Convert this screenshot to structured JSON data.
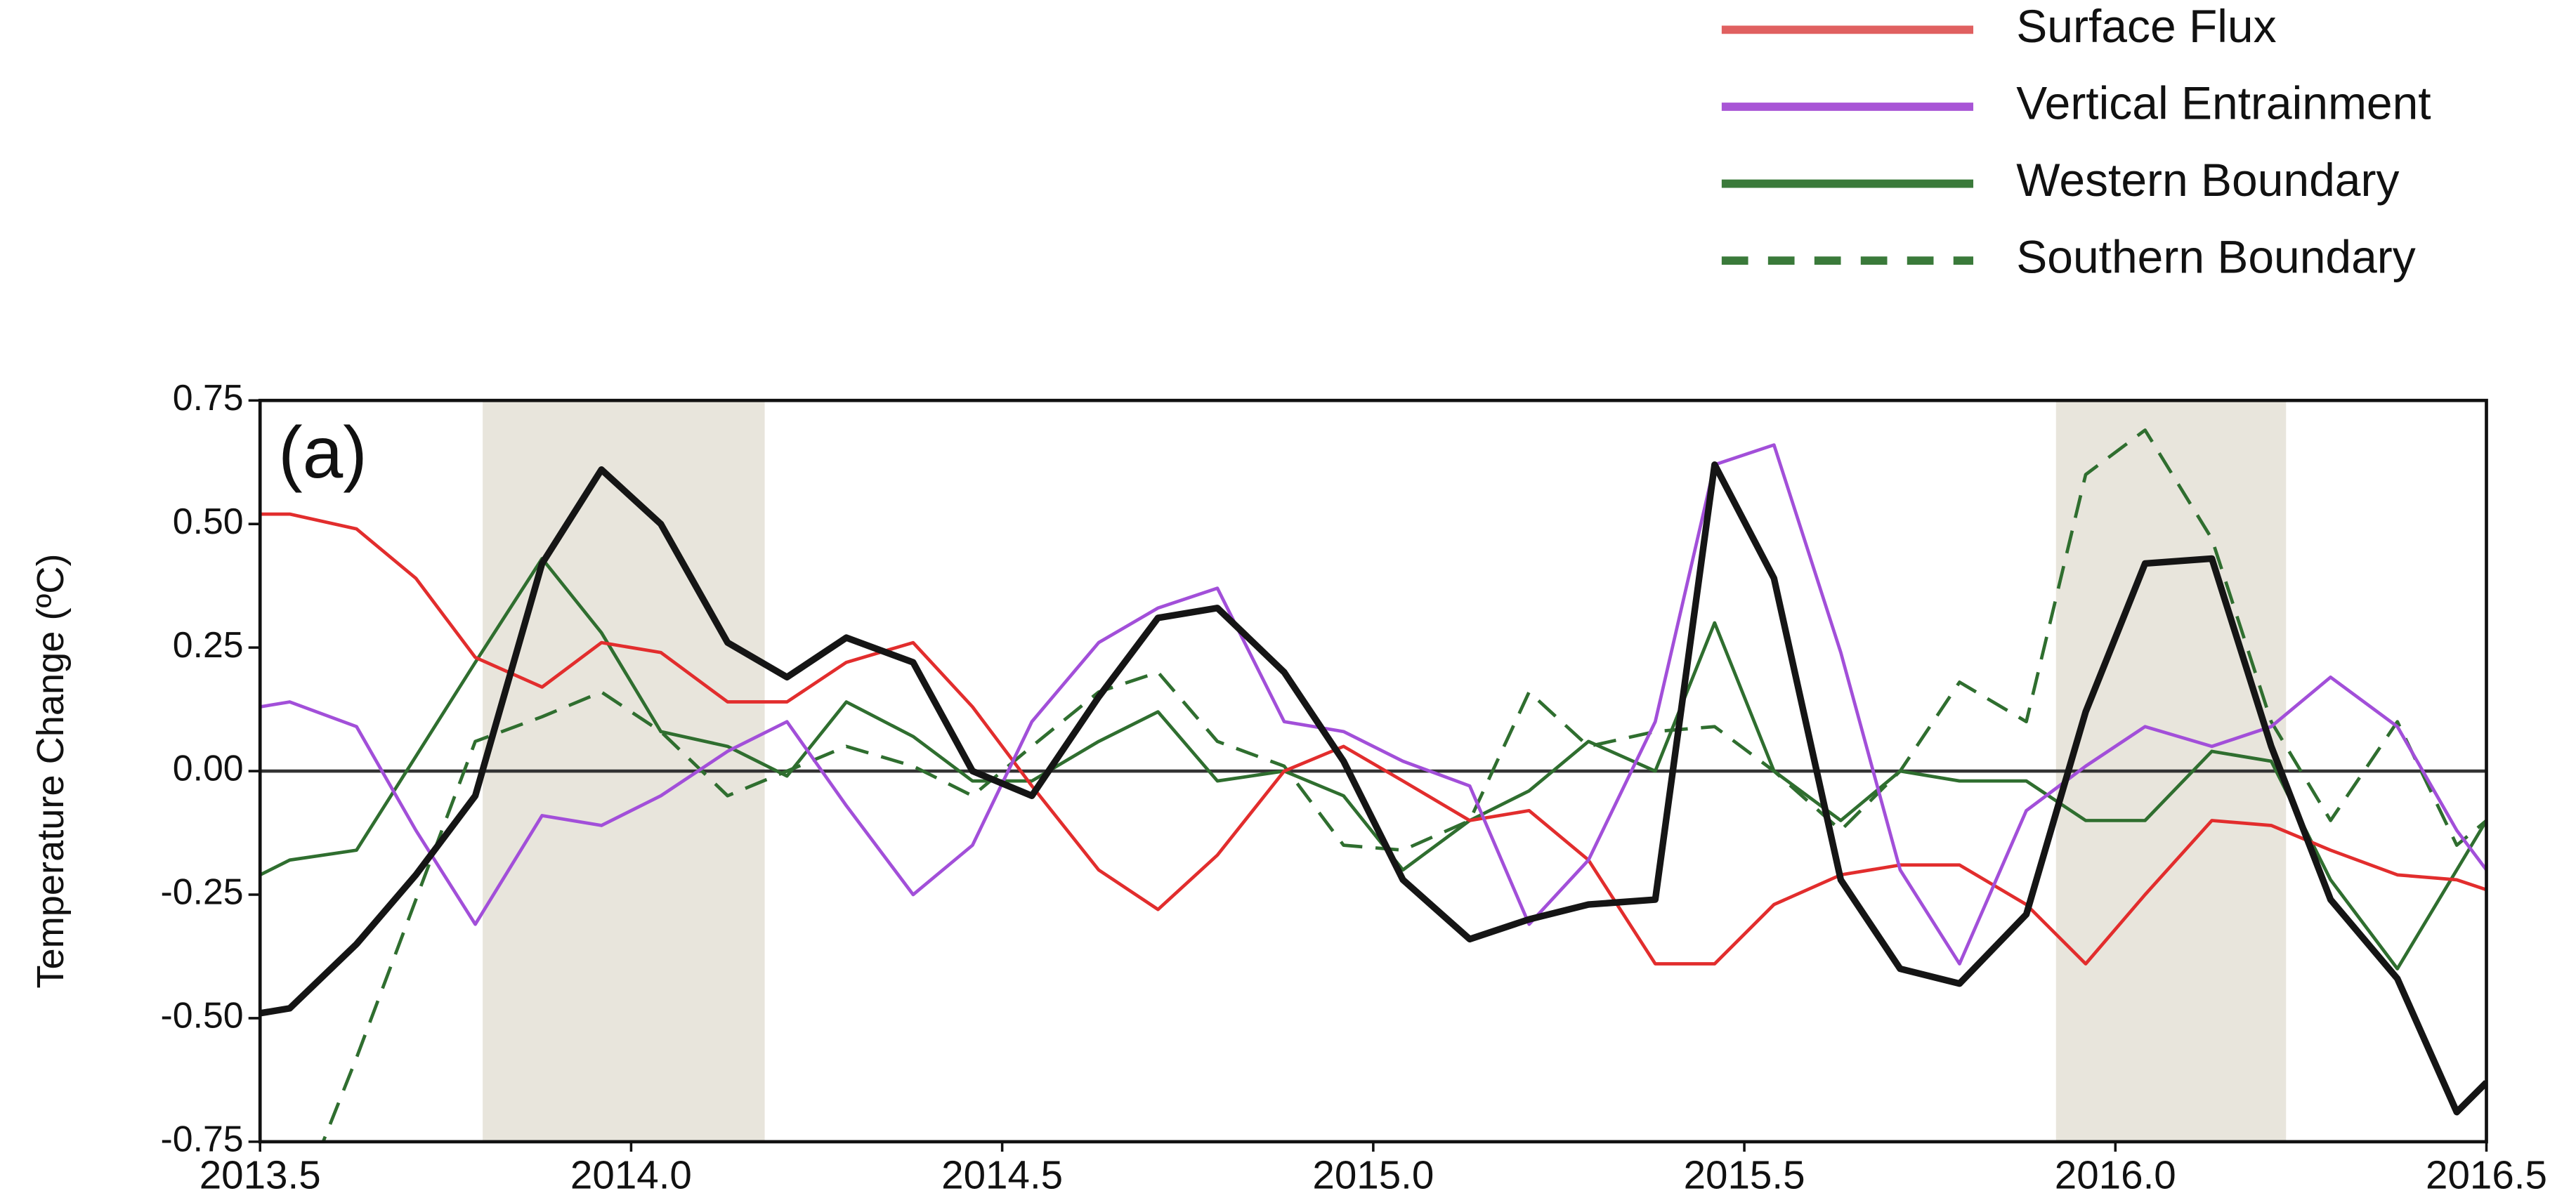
{
  "chart_data": {
    "type": "line",
    "ylabel": "Temperature Change (ºC)",
    "annotation": "(a)",
    "x": [
      2013.5,
      2013.54,
      2013.63,
      2013.71,
      2013.79,
      2013.88,
      2013.96,
      2014.04,
      2014.13,
      2014.21,
      2014.29,
      2014.38,
      2014.46,
      2014.54,
      2014.63,
      2014.71,
      2014.79,
      2014.88,
      2014.96,
      2015.04,
      2015.13,
      2015.21,
      2015.29,
      2015.38,
      2015.46,
      2015.54,
      2015.63,
      2015.71,
      2015.79,
      2015.88,
      2015.96,
      2016.04,
      2016.13,
      2016.21,
      2016.29,
      2016.38,
      2016.46,
      2016.5
    ],
    "series": [
      {
        "name": "Surface Flux",
        "color": "#e22d2d",
        "legend_color": "#e06060",
        "dash": false,
        "width": 2,
        "values": [
          0.52,
          0.52,
          0.49,
          0.39,
          0.23,
          0.17,
          0.26,
          0.24,
          0.14,
          0.14,
          0.22,
          0.26,
          0.13,
          -0.03,
          -0.2,
          -0.28,
          -0.17,
          0.0,
          0.05,
          -0.02,
          -0.1,
          -0.08,
          -0.18,
          -0.39,
          -0.39,
          -0.27,
          -0.21,
          -0.19,
          -0.19,
          -0.27,
          -0.39,
          -0.25,
          -0.1,
          -0.11,
          -0.16,
          -0.21,
          -0.22,
          -0.24
        ]
      },
      {
        "name": "Vertical Entrainment",
        "color": "#a24fd9",
        "legend_color": "#a855d6",
        "dash": false,
        "width": 2,
        "values": [
          0.13,
          0.14,
          0.09,
          -0.12,
          -0.31,
          -0.09,
          -0.11,
          -0.05,
          0.04,
          0.1,
          -0.07,
          -0.25,
          -0.15,
          0.1,
          0.26,
          0.33,
          0.37,
          0.1,
          0.08,
          0.02,
          -0.03,
          -0.31,
          -0.18,
          0.1,
          0.62,
          0.66,
          0.24,
          -0.2,
          -0.39,
          -0.08,
          0.01,
          0.09,
          0.05,
          0.09,
          0.19,
          0.09,
          -0.12,
          -0.2
        ]
      },
      {
        "name": "Western Boundary",
        "color": "#2f6e2f",
        "legend_color": "#3a7a3a",
        "dash": false,
        "width": 2,
        "values": [
          -0.21,
          -0.18,
          -0.16,
          0.03,
          0.22,
          0.43,
          0.28,
          0.08,
          0.05,
          -0.01,
          0.14,
          0.07,
          -0.02,
          -0.02,
          0.06,
          0.12,
          -0.02,
          0.0,
          -0.05,
          -0.2,
          -0.1,
          -0.04,
          0.06,
          0.0,
          0.3,
          0.0,
          -0.1,
          0.0,
          -0.02,
          -0.02,
          -0.1,
          -0.1,
          0.04,
          0.02,
          -0.22,
          -0.4,
          -0.2,
          -0.1
        ]
      },
      {
        "name": "Southern Boundary",
        "color": "#2f6e2f",
        "legend_color": "#3a7a3a",
        "dash": true,
        "width": 2,
        "values": [
          null,
          -0.92,
          -0.58,
          -0.26,
          0.06,
          0.11,
          0.16,
          0.08,
          -0.05,
          0.0,
          0.05,
          0.01,
          -0.05,
          0.05,
          0.16,
          0.2,
          0.06,
          0.01,
          -0.15,
          -0.16,
          -0.1,
          0.16,
          0.05,
          0.08,
          0.09,
          0.0,
          -0.12,
          0.0,
          0.18,
          0.1,
          0.6,
          0.69,
          0.47,
          0.1,
          -0.1,
          0.1,
          -0.15,
          -0.1
        ]
      },
      {
        "color": "#151515",
        "dash": false,
        "width": 4,
        "values": [
          -0.49,
          -0.48,
          -0.35,
          -0.21,
          -0.05,
          0.42,
          0.61,
          0.5,
          0.26,
          0.19,
          0.27,
          0.22,
          0.0,
          -0.05,
          0.15,
          0.31,
          0.33,
          0.2,
          0.02,
          -0.22,
          -0.34,
          -0.3,
          -0.27,
          -0.26,
          0.62,
          0.39,
          -0.22,
          -0.4,
          -0.43,
          -0.29,
          0.12,
          0.42,
          0.43,
          0.05,
          -0.26,
          -0.42,
          -0.69,
          -0.63
        ]
      }
    ],
    "shaded_spans": [
      [
        2013.8,
        2014.18
      ],
      [
        2015.92,
        2016.23
      ]
    ],
    "shade_color": "#e8e5dc",
    "zero_line": true,
    "xlim": [
      2013.5,
      2016.5
    ],
    "xticks": [
      2013.5,
      {
        "value": 2014.0,
        "label": "2014.0"
      },
      2014.5,
      {
        "value": 2015.0,
        "label": "2015.0"
      },
      2015.5,
      {
        "value": 2016.0,
        "label": "2016.0"
      },
      2016.5
    ],
    "ylim": [
      -0.75,
      0.75
    ],
    "yticks": [
      -0.75,
      {
        "value": -0.5,
        "label": "-0.50"
      },
      -0.25,
      {
        "value": 0,
        "label": "0.00"
      },
      0.25,
      {
        "value": 0.5,
        "label": "0.50"
      },
      0.75
    ],
    "legend": "top-right"
  }
}
